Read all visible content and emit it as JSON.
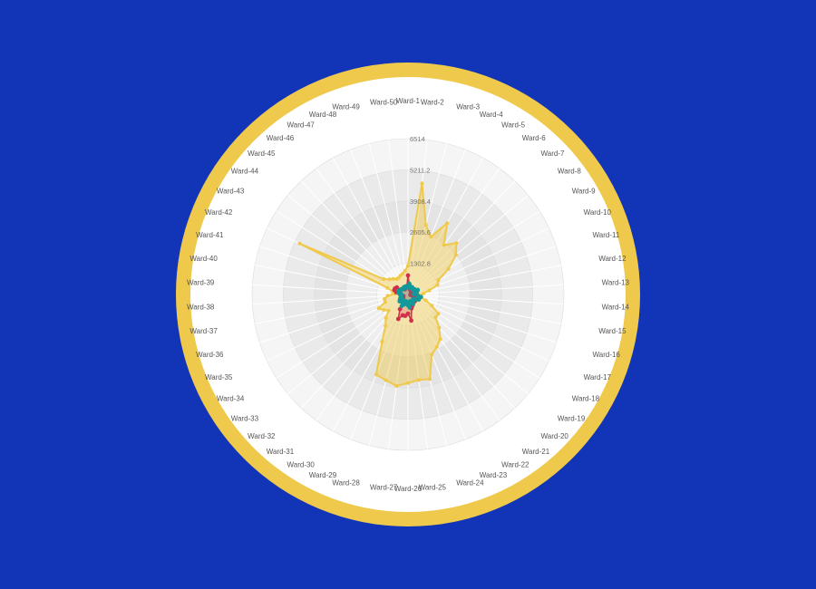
{
  "colors": {
    "page_background": "#1235b8",
    "frame_ring": "#efc94c",
    "chart_face": "#ffffff",
    "band_light": "#f5f5f5",
    "band_dark": "#e4e4e4",
    "spoke": "#ffffff",
    "series_colors": [
      "#efc94c",
      "#d0304a",
      "#12999a"
    ]
  },
  "chart_data": {
    "type": "radar",
    "title": "",
    "categories": [
      "Ward-1",
      "Ward-2",
      "Ward-3",
      "Ward-4",
      "Ward-5",
      "Ward-6",
      "Ward-7",
      "Ward-8",
      "Ward-9",
      "Ward-10",
      "Ward-11",
      "Ward-12",
      "Ward-13",
      "Ward-14",
      "Ward-15",
      "Ward-16",
      "Ward-17",
      "Ward-18",
      "Ward-19",
      "Ward-20",
      "Ward-21",
      "Ward-22",
      "Ward-23",
      "Ward-24",
      "Ward-25",
      "Ward-26",
      "Ward-27",
      "Ward-28",
      "Ward-29",
      "Ward-30",
      "Ward-31",
      "Ward-32",
      "Ward-33",
      "Ward-34",
      "Ward-35",
      "Ward-36",
      "Ward-37",
      "Ward-38",
      "Ward-39",
      "Ward-40",
      "Ward-41",
      "Ward-42",
      "Ward-43",
      "Ward-44",
      "Ward-45",
      "Ward-46",
      "Ward-47",
      "Ward-48",
      "Ward-49",
      "Ward-50"
    ],
    "radial_max": 6514,
    "radial_ticks": [
      "1302.8",
      "2605.6",
      "3908.4",
      "5211.2",
      "6514"
    ],
    "grid": true,
    "series": [
      {
        "values": [
          1200,
          4680,
          3000,
          2600,
          3400,
          2550,
          2950,
          2600,
          2000,
          1400,
          1300,
          900,
          650,
          500,
          520,
          780,
          1100,
          1500,
          1500,
          1900,
          2300,
          2500,
          2700,
          3650,
          3600,
          3700,
          3850,
          3700,
          3600,
          2250,
          1600,
          1350,
          1050,
          1200,
          1350,
          1000,
          1000,
          850,
          550,
          650,
          900,
          5000,
          1200,
          1000,
          900,
          800,
          800,
          850,
          900,
          1000
        ]
      },
      {
        "values": [
          800,
          400,
          300,
          250,
          200,
          300,
          250,
          200,
          150,
          150,
          150,
          200,
          200,
          150,
          100,
          200,
          300,
          350,
          400,
          400,
          400,
          400,
          500,
          600,
          1100,
          800,
          900,
          900,
          1100,
          700,
          400,
          300,
          250,
          300,
          300,
          200,
          300,
          300,
          350,
          500,
          600,
          600,
          550,
          350,
          300,
          300,
          250,
          350,
          300,
          350
        ]
      },
      {
        "values": [
          300,
          450,
          350,
          300,
          350,
          300,
          300,
          350,
          300,
          450,
          400,
          350,
          250,
          400,
          550,
          450,
          500,
          400,
          300,
          350,
          300,
          450,
          350,
          300,
          550,
          450,
          350,
          300,
          450,
          550,
          400,
          300,
          450,
          400,
          350,
          300,
          300,
          250,
          300,
          400,
          350,
          400,
          350,
          350,
          300,
          300,
          350,
          300,
          350,
          300
        ]
      }
    ]
  }
}
